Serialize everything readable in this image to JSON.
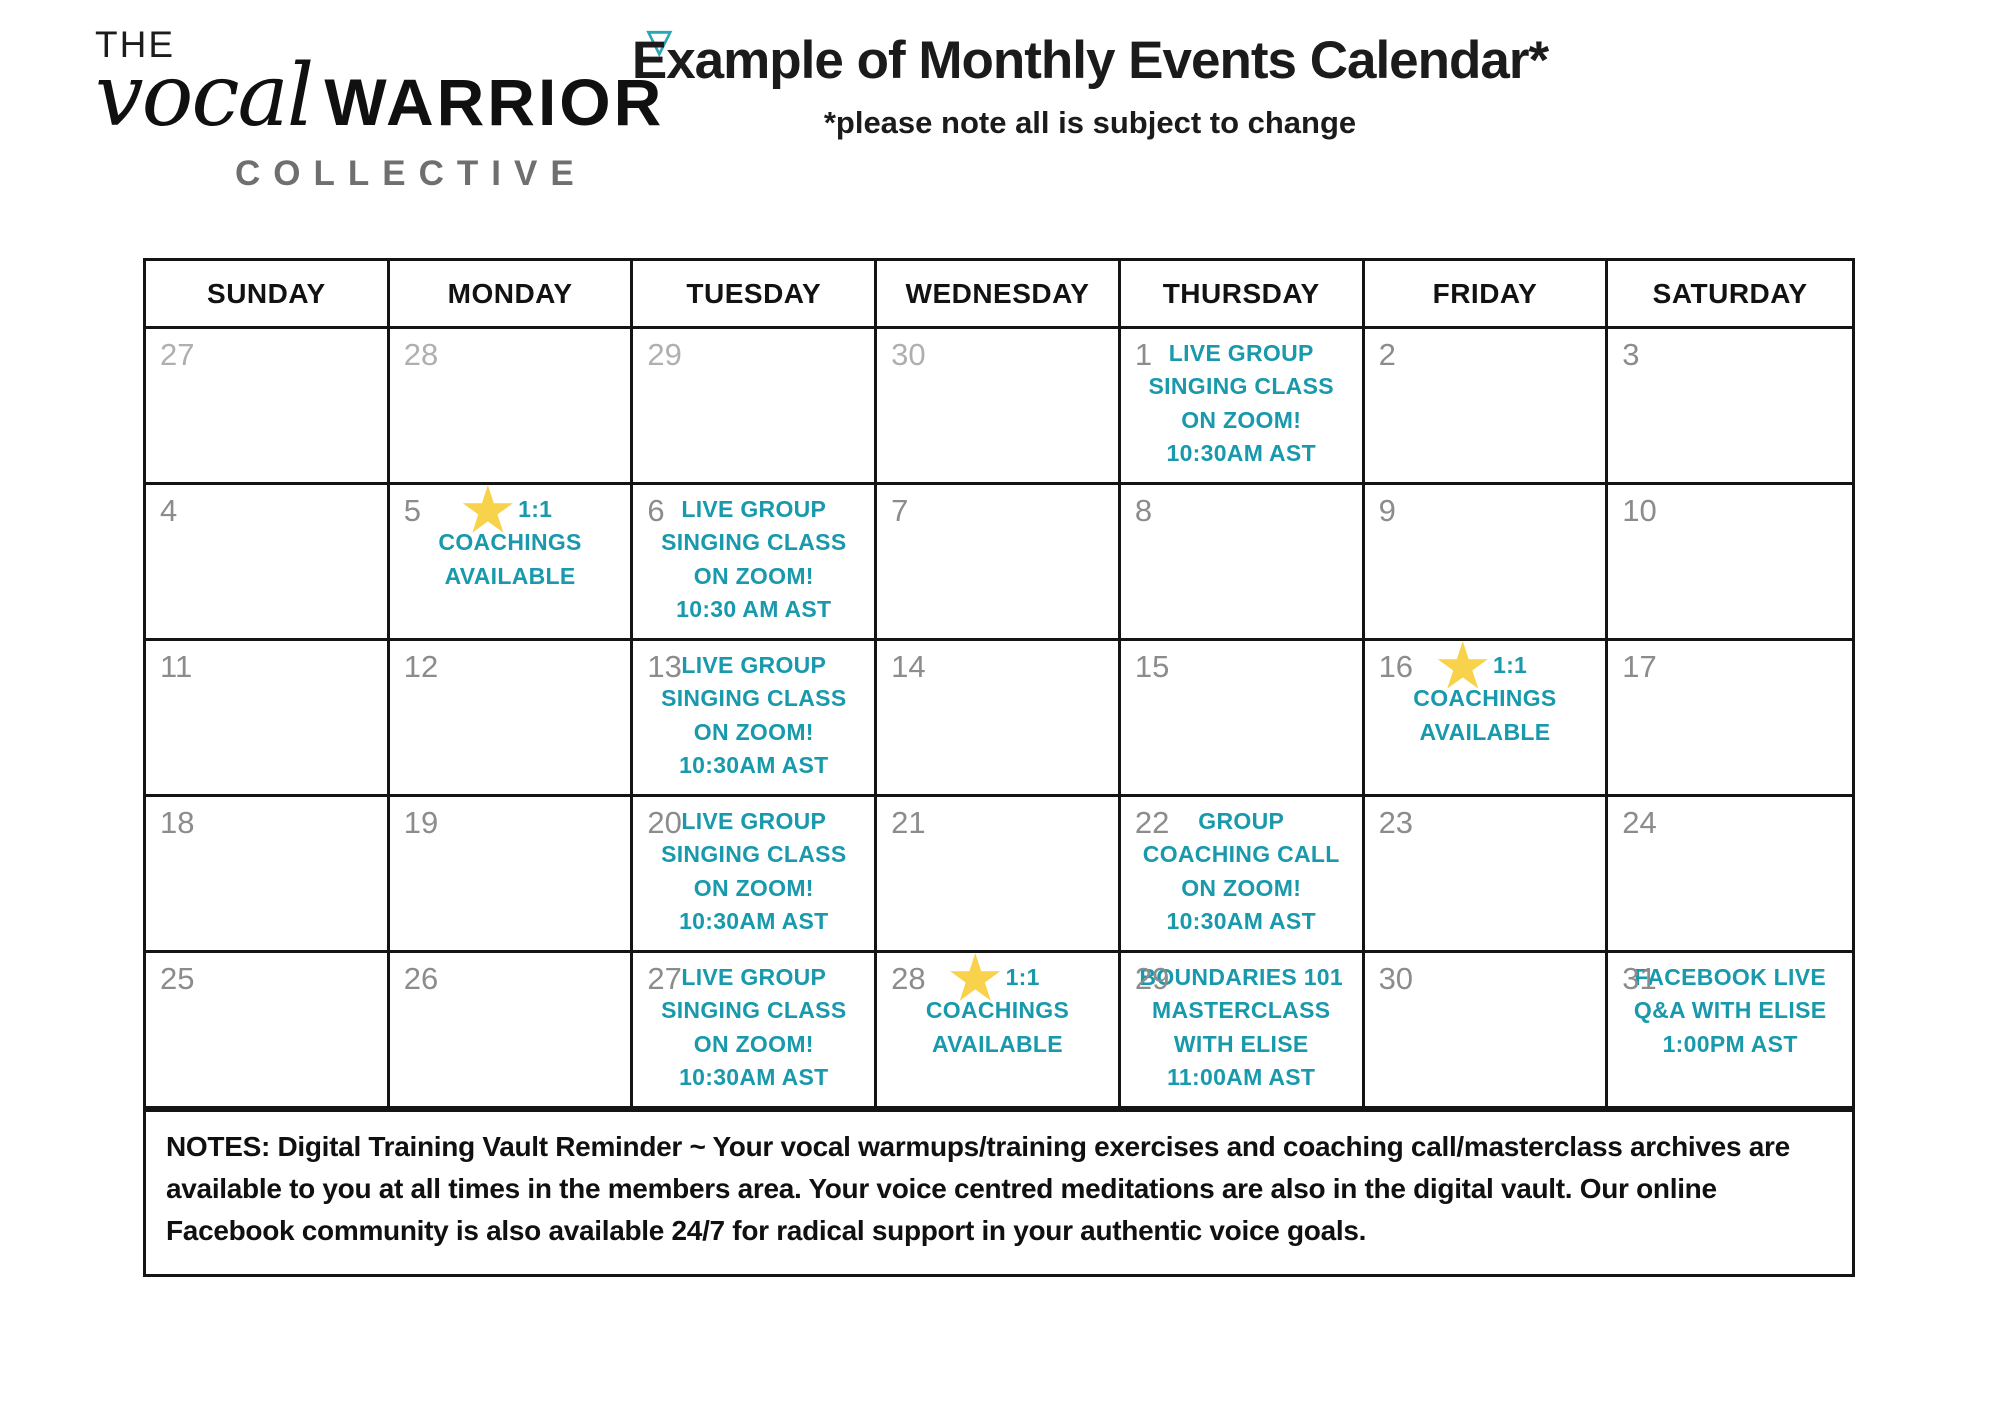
{
  "logo": {
    "the": "THE",
    "script_word": "vocal",
    "warrior": "WARRIOR",
    "collective": "COLLECTIVE"
  },
  "icons": {
    "triangle": "▽",
    "star": "★"
  },
  "header": {
    "title": "Example of Monthly Events Calendar*",
    "subtitle": "*please note all is subject to change"
  },
  "calendar": {
    "day_headers": [
      "SUNDAY",
      "MONDAY",
      "TUESDAY",
      "WEDNESDAY",
      "THURSDAY",
      "FRIDAY",
      "SATURDAY"
    ],
    "weeks": [
      [
        {
          "date": "27",
          "outside": true
        },
        {
          "date": "28",
          "outside": true
        },
        {
          "date": "29",
          "outside": true
        },
        {
          "date": "30",
          "outside": true
        },
        {
          "date": "1",
          "event": [
            "LIVE GROUP",
            "SINGING CLASS",
            "ON ZOOM!",
            "10:30AM AST"
          ]
        },
        {
          "date": "2"
        },
        {
          "date": "3"
        }
      ],
      [
        {
          "date": "4"
        },
        {
          "date": "5",
          "star": true,
          "event": [
            "1:1",
            "COACHINGS",
            "AVAILABLE"
          ]
        },
        {
          "date": "6",
          "event": [
            "LIVE GROUP",
            "SINGING CLASS",
            "ON ZOOM!",
            "10:30 AM AST"
          ]
        },
        {
          "date": "7"
        },
        {
          "date": "8"
        },
        {
          "date": "9"
        },
        {
          "date": "10"
        }
      ],
      [
        {
          "date": "11"
        },
        {
          "date": "12"
        },
        {
          "date": "13",
          "event": [
            "LIVE GROUP",
            "SINGING CLASS",
            "ON ZOOM!",
            "10:30AM AST"
          ]
        },
        {
          "date": "14"
        },
        {
          "date": "15"
        },
        {
          "date": "16",
          "star": true,
          "event": [
            "1:1",
            "COACHINGS",
            "AVAILABLE"
          ]
        },
        {
          "date": "17"
        }
      ],
      [
        {
          "date": "18"
        },
        {
          "date": "19"
        },
        {
          "date": "20",
          "event": [
            "LIVE GROUP",
            "SINGING CLASS",
            "ON ZOOM!",
            "10:30AM AST"
          ]
        },
        {
          "date": "21"
        },
        {
          "date": "22",
          "event": [
            "GROUP",
            "COACHING CALL",
            "ON ZOOM!",
            "10:30AM AST"
          ]
        },
        {
          "date": "23"
        },
        {
          "date": "24"
        }
      ],
      [
        {
          "date": "25"
        },
        {
          "date": "26"
        },
        {
          "date": "27",
          "event": [
            "LIVE GROUP",
            "SINGING CLASS",
            "ON ZOOM!",
            "10:30AM AST"
          ]
        },
        {
          "date": "28",
          "star": true,
          "event": [
            "1:1",
            "COACHINGS",
            "AVAILABLE"
          ]
        },
        {
          "date": "29",
          "event": [
            "BOUNDARIES 101",
            "MASTERCLASS",
            "WITH ELISE",
            "11:00AM AST"
          ]
        },
        {
          "date": "30"
        },
        {
          "date": "31",
          "event": [
            "FACEBOOK LIVE",
            "Q&A WITH ELISE",
            "1:00PM AST"
          ]
        }
      ]
    ]
  },
  "notes": "NOTES: Digital Training Vault Reminder ~ Your vocal warmups/training exercises and coaching call/masterclass archives are available to you at all times in the members area. Your voice centred meditations are also in the digital vault. Our online Facebook community is also available 24/7 for radical support in your authentic voice goals.",
  "colors": {
    "accent_teal": "#1899AC",
    "star_yellow": "#F8D24A",
    "triangle_teal": "#2BA6B8",
    "date_grey": "#8C8C8C",
    "date_outside_grey": "#AFAFAF",
    "collective_grey": "#6F6F6F",
    "border_black": "#141414"
  }
}
